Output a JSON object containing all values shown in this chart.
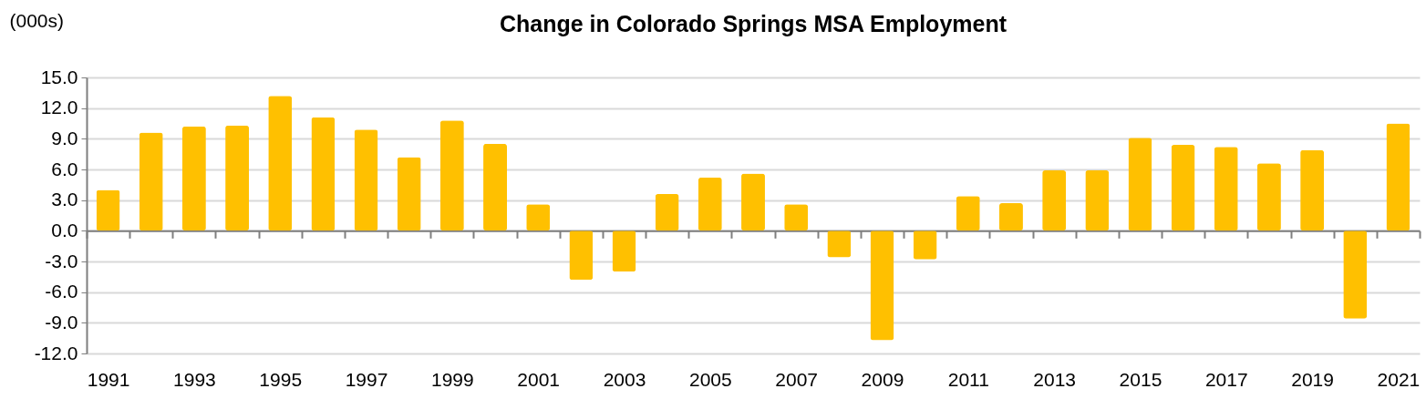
{
  "chart_data": {
    "type": "bar",
    "title": "Change in Colorado Springs MSA Employment",
    "ylabel": "(000s)",
    "categories": [
      "1991",
      null,
      "1993",
      null,
      "1995",
      null,
      "1997",
      null,
      "1999",
      null,
      "2001",
      null,
      "2003",
      null,
      "2005",
      null,
      "2007",
      null,
      "2009",
      null,
      "2011",
      null,
      "2013",
      null,
      "2015",
      null,
      "2017",
      null,
      "2019",
      null,
      "2021"
    ],
    "series": [
      {
        "color": "#ffc000",
        "values": [
          4.0,
          9.6,
          10.2,
          10.3,
          13.2,
          11.1,
          9.9,
          7.2,
          10.8,
          8.5,
          2.6,
          -4.8,
          -4.0,
          3.6,
          5.2,
          5.6,
          2.6,
          -2.6,
          -10.7,
          -2.8,
          3.4,
          2.7,
          5.9,
          5.9,
          9.1,
          8.4,
          8.2,
          6.6,
          7.9,
          -8.6,
          10.5
        ]
      }
    ],
    "ylim": [
      -12,
      15
    ],
    "yticks": [
      {
        "value": -12,
        "label": "-12.0"
      },
      {
        "value": -9,
        "label": "-9.0"
      },
      {
        "value": -6,
        "label": "-6.0"
      },
      {
        "value": -3,
        "label": "-3.0"
      },
      {
        "value": 0,
        "label": "0.0"
      },
      {
        "value": 3,
        "label": "3.0"
      },
      {
        "value": 6,
        "label": "6.0"
      },
      {
        "value": 9,
        "label": "9.0"
      },
      {
        "value": 12,
        "label": "12.0"
      },
      {
        "value": 15,
        "label": "15.0"
      }
    ],
    "grid": "y",
    "legend": false
  }
}
